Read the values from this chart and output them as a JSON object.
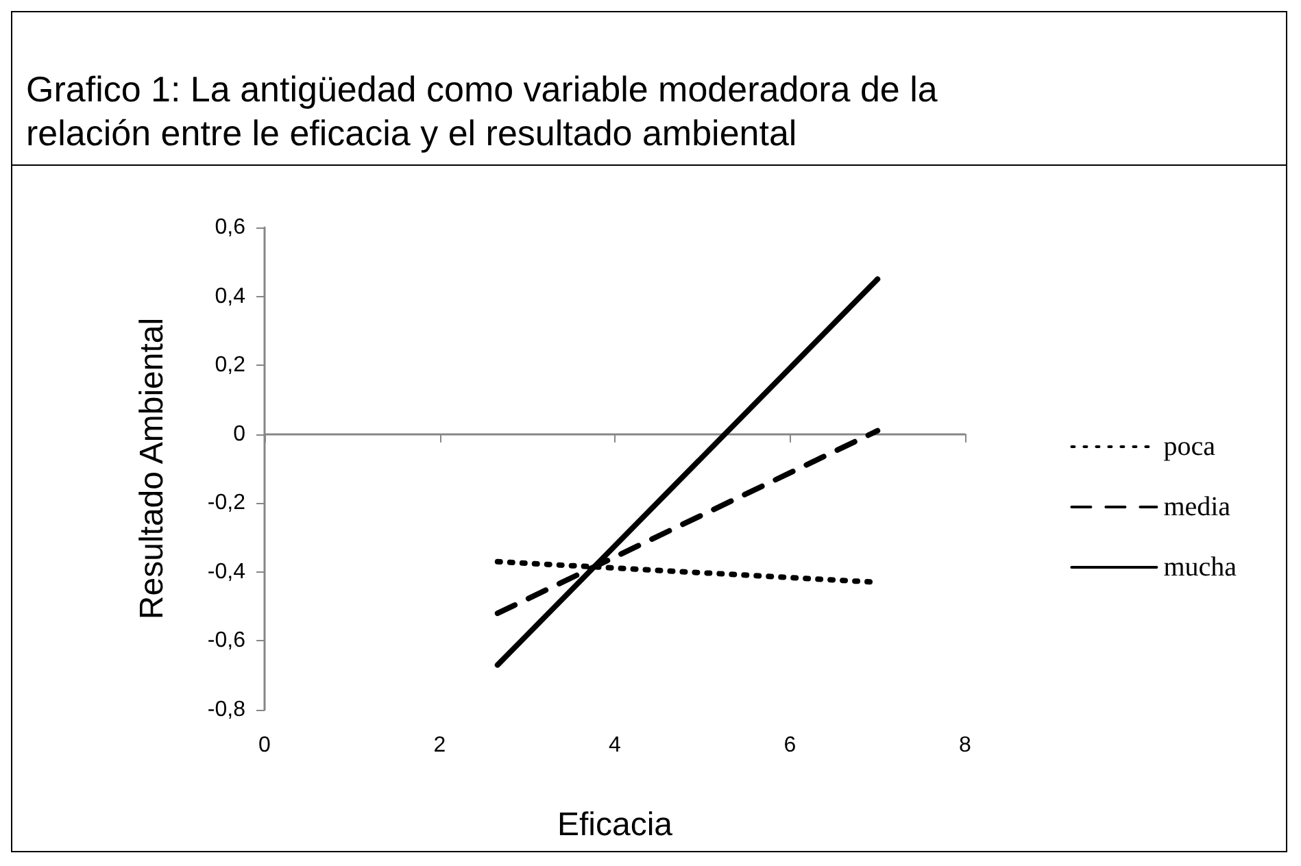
{
  "chart_data": {
    "type": "line",
    "title": "Grafico 1: La antigüedad como variable moderadora de la relación entre le eficacia y el resultado ambiental",
    "xlabel": "Eficacia",
    "ylabel": "Resultado Ambiental",
    "x": [
      2.66,
      7
    ],
    "series": [
      {
        "name": "poca",
        "color": "#000000",
        "values": [
          -0.37,
          -0.43
        ],
        "line_style": "dotted"
      },
      {
        "name": "media",
        "color": "#000000",
        "values": [
          -0.52,
          0.01
        ],
        "line_style": "dashed"
      },
      {
        "name": "mucha",
        "color": "#000000",
        "values": [
          -0.67,
          0.45
        ],
        "line_style": "solid"
      }
    ],
    "xlim": [
      0,
      8
    ],
    "xticks": [
      0,
      2,
      4,
      6,
      8
    ],
    "ylim": [
      -0.8,
      0.6
    ],
    "yticks": [
      {
        "value": -0.8,
        "label": "-0,8"
      },
      {
        "value": -0.6,
        "label": "-0,6"
      },
      {
        "value": -0.4,
        "label": "-0,4"
      },
      {
        "value": -0.2,
        "label": "-0,2"
      },
      0,
      {
        "value": 0.2,
        "label": "0,2"
      },
      {
        "value": 0.4,
        "label": "0,4"
      },
      {
        "value": 0.6,
        "label": "0,6"
      }
    ],
    "legend": "right",
    "marker": "none"
  }
}
